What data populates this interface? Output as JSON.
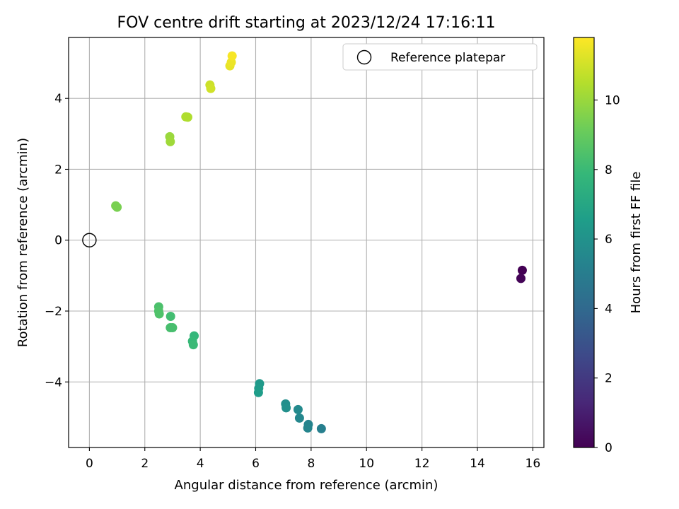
{
  "chart_data": {
    "type": "scatter",
    "title": "FOV centre drift starting at 2023/12/24 17:16:11",
    "xlabel": "Angular distance from reference (arcmin)",
    "ylabel": "Rotation from reference (arcmin)",
    "xlim": [
      -0.75,
      16.4
    ],
    "ylim": [
      -5.85,
      5.72
    ],
    "xticks": [
      0,
      2,
      4,
      6,
      8,
      10,
      12,
      14,
      16
    ],
    "yticks": [
      -4,
      -2,
      0,
      2,
      4
    ],
    "xtick_labels": [
      "0",
      "2",
      "4",
      "6",
      "8",
      "10",
      "12",
      "14",
      "16"
    ],
    "ytick_labels": [
      "−4",
      "−2",
      "0",
      "2",
      "4"
    ],
    "grid": true,
    "legend": {
      "position": "top-right",
      "entries": [
        "Reference platepar"
      ]
    },
    "reference_point": {
      "x": 0,
      "y": 0
    },
    "colorbar": {
      "label": "Hours from first FF file",
      "colormap": "viridis",
      "range": [
        0,
        11.8
      ],
      "ticks": [
        0,
        2,
        4,
        6,
        8,
        10
      ],
      "tick_labels": [
        "0",
        "2",
        "4",
        "6",
        "8",
        "10"
      ]
    },
    "points": [
      {
        "x": 15.62,
        "y": -0.85,
        "hours": 0.0
      },
      {
        "x": 15.57,
        "y": -1.08,
        "hours": 0.1
      },
      {
        "x": 8.37,
        "y": -5.32,
        "hours": 5.1
      },
      {
        "x": 7.9,
        "y": -5.2,
        "hours": 5.3
      },
      {
        "x": 7.88,
        "y": -5.3,
        "hours": 5.4
      },
      {
        "x": 7.58,
        "y": -5.02,
        "hours": 5.5
      },
      {
        "x": 7.53,
        "y": -4.78,
        "hours": 5.6
      },
      {
        "x": 7.08,
        "y": -4.62,
        "hours": 5.8
      },
      {
        "x": 7.1,
        "y": -4.73,
        "hours": 5.9
      },
      {
        "x": 6.14,
        "y": -4.05,
        "hours": 6.3
      },
      {
        "x": 6.11,
        "y": -4.18,
        "hours": 6.4
      },
      {
        "x": 6.1,
        "y": -4.3,
        "hours": 6.5
      },
      {
        "x": 3.78,
        "y": -2.7,
        "hours": 7.8
      },
      {
        "x": 3.72,
        "y": -2.85,
        "hours": 7.9
      },
      {
        "x": 3.75,
        "y": -2.95,
        "hours": 8.0
      },
      {
        "x": 2.93,
        "y": -2.15,
        "hours": 8.2
      },
      {
        "x": 2.92,
        "y": -2.47,
        "hours": 8.3
      },
      {
        "x": 3.0,
        "y": -2.47,
        "hours": 8.3
      },
      {
        "x": 2.5,
        "y": -1.88,
        "hours": 8.4
      },
      {
        "x": 2.5,
        "y": -2.0,
        "hours": 8.5
      },
      {
        "x": 2.52,
        "y": -2.08,
        "hours": 8.5
      },
      {
        "x": 0.95,
        "y": 0.97,
        "hours": 9.4
      },
      {
        "x": 1.0,
        "y": 0.93,
        "hours": 9.4
      },
      {
        "x": 2.9,
        "y": 2.92,
        "hours": 10.0
      },
      {
        "x": 2.92,
        "y": 2.78,
        "hours": 10.1
      },
      {
        "x": 3.48,
        "y": 3.48,
        "hours": 10.4
      },
      {
        "x": 3.55,
        "y": 3.47,
        "hours": 10.4
      },
      {
        "x": 4.35,
        "y": 4.38,
        "hours": 10.9
      },
      {
        "x": 4.38,
        "y": 4.28,
        "hours": 11.0
      },
      {
        "x": 5.07,
        "y": 4.92,
        "hours": 11.4
      },
      {
        "x": 5.12,
        "y": 5.02,
        "hours": 11.5
      },
      {
        "x": 5.15,
        "y": 5.2,
        "hours": 11.7
      }
    ]
  }
}
